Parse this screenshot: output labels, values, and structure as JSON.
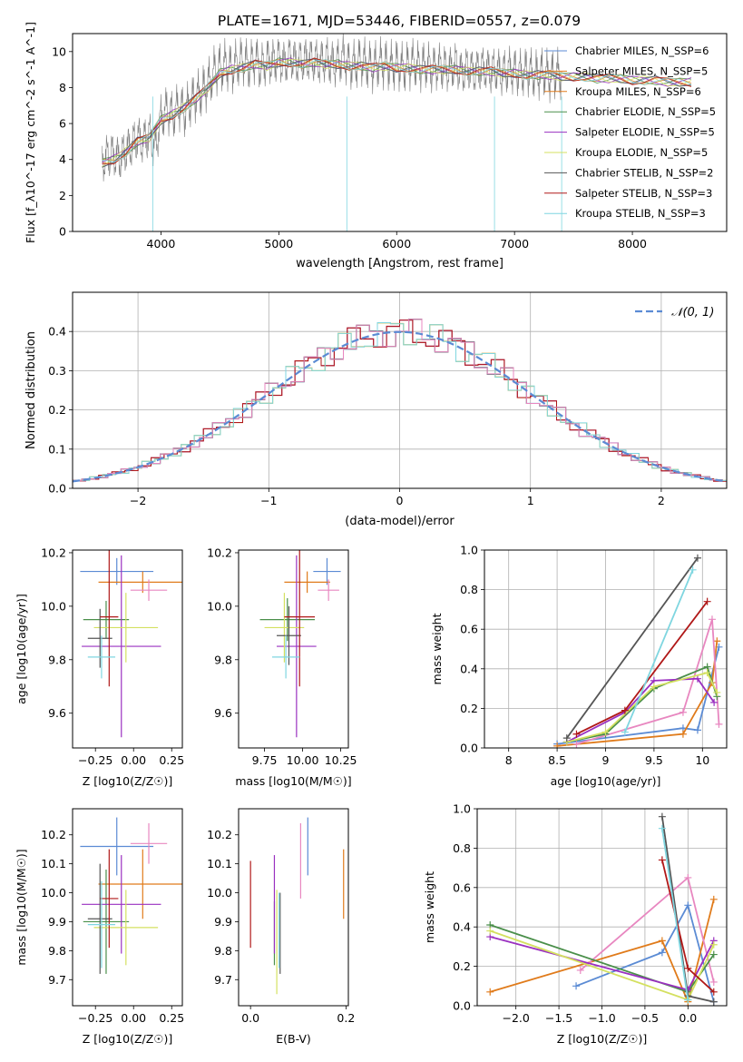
{
  "figure_title": "PLATE=1671, MJD=53446, FIBERID=0557, z=0.079",
  "colors": {
    "Chabrier MILES": "#5b8bd4",
    "Salpeter MILES": "#e07b1b",
    "Kroupa MILES": "#e07b1b",
    "Chabrier ELODIE": "#4a8f4a",
    "Salpeter ELODIE": "#9a30c0",
    "Kroupa ELODIE": "#d4e060",
    "Chabrier STELIB": "#555555",
    "Salpeter STELIB": "#b01818",
    "Kroupa STELIB": "#7fd6e0",
    "pink": "#e887c0",
    "gaussian": "#5b8bd4",
    "spectrum_grey": "#808080"
  },
  "chart_data": [
    {
      "id": "spectrum",
      "type": "line",
      "title": "PLATE=1671, MJD=53446, FIBERID=0557, z=0.079",
      "xlabel": "wavelength [Angstrom, rest frame]",
      "ylabel": "Flux [f_λ10^-17 erg cm^-2 s^-1 A^-1]",
      "xlim": [
        3250,
        8800
      ],
      "ylim": [
        0,
        11
      ],
      "xticks": [
        4000,
        5000,
        6000,
        7000,
        8000
      ],
      "yticks": [
        0,
        2,
        4,
        6,
        8,
        10
      ],
      "grid": false,
      "legend_position": "right",
      "legend": [
        {
          "name": "Chabrier MILES, N_SSP=6",
          "color": "#5b8bd4"
        },
        {
          "name": "Salpeter MILES, N_SSP=5",
          "color": "#e07b1b"
        },
        {
          "name": "Kroupa MILES, N_SSP=6",
          "color": "#e07b1b"
        },
        {
          "name": "Chabrier ELODIE, N_SSP=5",
          "color": "#4a8f4a"
        },
        {
          "name": "Salpeter ELODIE, N_SSP=5",
          "color": "#9a30c0"
        },
        {
          "name": "Kroupa ELODIE, N_SSP=5",
          "color": "#d4e060"
        },
        {
          "name": "Chabrier STELIB, N_SSP=2",
          "color": "#555555"
        },
        {
          "name": "Salpeter STELIB, N_SSP=3",
          "color": "#b01818"
        },
        {
          "name": "Kroupa STELIB, N_SSP=3",
          "color": "#7fd6e0"
        }
      ],
      "observed_x": [
        3500,
        3550,
        3600,
        3650,
        3700,
        3750,
        3800,
        3850,
        3900,
        3950,
        4000,
        4050,
        4100,
        4150,
        4200,
        4250,
        4300,
        4350,
        4400,
        4450,
        4500,
        4550,
        4600,
        4650,
        4700,
        4750,
        4800,
        4850,
        4900,
        4950,
        5000,
        5050,
        5100,
        5150,
        5200,
        5250,
        5300,
        5350,
        5400,
        5450,
        5500,
        5550,
        5600,
        5650,
        5700,
        5750,
        5800,
        5850,
        5900,
        5950,
        6000,
        6050,
        6100,
        6150,
        6200,
        6250,
        6300,
        6350,
        6400,
        6450,
        6500,
        6550,
        6600,
        6650,
        6700,
        6750,
        6800,
        6850,
        6900,
        6950,
        7000,
        7050,
        7100,
        7150,
        7200,
        7250,
        7300,
        7350,
        7400
      ],
      "observed_y": [
        3.9,
        4.2,
        4.3,
        4.0,
        4.5,
        4.8,
        5.2,
        5.0,
        5.4,
        4.6,
        6.3,
        6.8,
        6.4,
        7.0,
        6.6,
        7.2,
        7.5,
        7.8,
        8.2,
        8.9,
        9.1,
        9.3,
        9.0,
        9.4,
        9.5,
        9.2,
        9.6,
        9.1,
        9.5,
        9.4,
        9.6,
        9.3,
        9.7,
        9.4,
        9.5,
        9.6,
        9.5,
        9.4,
        9.6,
        9.3,
        9.4,
        9.7,
        9.2,
        9.3,
        9.5,
        9.3,
        9.1,
        9.4,
        9.3,
        9.2,
        9.3,
        9.1,
        9.2,
        9.4,
        9.1,
        9.3,
        9.0,
        9.2,
        9.1,
        9.0,
        9.3,
        8.8,
        9.1,
        8.9,
        9.0,
        9.1,
        8.9,
        9.0,
        8.8,
        9.0,
        8.9,
        8.8,
        8.9,
        8.8,
        8.7,
        8.9,
        8.6,
        8.8,
        8.7
      ],
      "model_x": [
        3500,
        3600,
        3700,
        3800,
        3900,
        4000,
        4100,
        4200,
        4300,
        4400,
        4500,
        4600,
        4700,
        4800,
        4900,
        5000,
        5100,
        5200,
        5300,
        5400,
        5500,
        5600,
        5700,
        5800,
        5900,
        6000,
        6100,
        6200,
        6300,
        6400,
        6500,
        6600,
        6700,
        6800,
        6900,
        7000,
        7100,
        7200,
        7300,
        7400,
        7500,
        7600,
        7700,
        7800,
        7900,
        8000,
        8100,
        8200,
        8300,
        8400,
        8500
      ],
      "model_y": [
        3.8,
        4.0,
        4.4,
        5.0,
        5.2,
        6.2,
        6.5,
        6.9,
        7.4,
        8.0,
        8.8,
        9.0,
        9.1,
        9.3,
        9.2,
        9.4,
        9.4,
        9.3,
        9.4,
        9.3,
        9.3,
        9.2,
        9.2,
        9.1,
        9.2,
        9.1,
        9.1,
        9.0,
        9.0,
        9.0,
        9.0,
        8.9,
        8.9,
        8.9,
        8.8,
        8.8,
        8.7,
        8.7,
        8.7,
        8.6,
        8.6,
        8.6,
        8.5,
        8.5,
        8.5,
        8.4,
        8.4,
        8.4,
        8.3,
        8.3,
        8.3
      ]
    },
    {
      "id": "residuals",
      "type": "histogram",
      "xlabel": "(data-model)/error",
      "ylabel": "Normed distribution",
      "xlim": [
        -2.5,
        2.5
      ],
      "ylim": [
        0,
        0.5
      ],
      "xticks": [
        -2,
        -1,
        0,
        1,
        2
      ],
      "yticks": [
        0.0,
        0.1,
        0.2,
        0.3,
        0.4
      ],
      "grid": true,
      "legend_position": "top-right",
      "legend": [
        {
          "name": "N(0,1)",
          "color": "#5b8bd4",
          "style": "dashed"
        }
      ]
    },
    {
      "id": "age_vs_Z",
      "type": "scatter",
      "xlabel": "Z [log10(Z/Z☉)]",
      "ylabel": "age  [log10(age/yr)]",
      "xlim": [
        -0.4,
        0.32
      ],
      "ylim": [
        9.47,
        10.21
      ],
      "xticks": [
        -0.25,
        0.0,
        0.25
      ],
      "yticks": [
        9.6,
        9.8,
        10.0,
        10.2
      ],
      "xtick_labels": [
        "−0.25",
        "0.00",
        "0.25"
      ],
      "points": [
        {
          "x": -0.11,
          "y": 10.13,
          "xerr": 0.24,
          "yerr": 0.05,
          "color": "#5b8bd4"
        },
        {
          "x": 0.06,
          "y": 10.09,
          "xerr": 0.29,
          "yerr": 0.04,
          "color": "#e07b1b"
        },
        {
          "x": 0.1,
          "y": 10.06,
          "xerr": 0.12,
          "yerr": 0.04,
          "color": "#e887c0"
        },
        {
          "x": -0.18,
          "y": 9.95,
          "xerr": 0.15,
          "yerr": 0.07,
          "color": "#4a8f4a"
        },
        {
          "x": -0.08,
          "y": 9.85,
          "xerr": 0.26,
          "yerr": 0.34,
          "color": "#9a30c0"
        },
        {
          "x": -0.05,
          "y": 9.92,
          "xerr": 0.21,
          "yerr": 0.13,
          "color": "#d4e060"
        },
        {
          "x": -0.22,
          "y": 9.88,
          "xerr": 0.08,
          "yerr": 0.11,
          "color": "#555555"
        },
        {
          "x": -0.16,
          "y": 9.96,
          "xerr": 0.06,
          "yerr": 0.26,
          "color": "#b01818"
        },
        {
          "x": -0.21,
          "y": 9.81,
          "xerr": 0.09,
          "yerr": 0.08,
          "color": "#7fd6e0"
        }
      ]
    },
    {
      "id": "age_vs_mass",
      "type": "scatter",
      "xlabel": "mass [log10(M/M☉)]",
      "xlim": [
        9.58,
        10.3
      ],
      "ylim": [
        9.47,
        10.21
      ],
      "xticks": [
        9.75,
        10.0,
        10.25
      ],
      "yticks": [
        9.6,
        9.8,
        10.0,
        10.2
      ],
      "xtick_labels": [
        "9.75",
        "10.00",
        "10.25"
      ],
      "points": [
        {
          "x": 10.16,
          "y": 10.13,
          "xerr": 0.09,
          "yerr": 0.05,
          "color": "#5b8bd4"
        },
        {
          "x": 10.03,
          "y": 10.09,
          "xerr": 0.15,
          "yerr": 0.04,
          "color": "#e07b1b"
        },
        {
          "x": 10.17,
          "y": 10.06,
          "xerr": 0.07,
          "yerr": 0.04,
          "color": "#e887c0"
        },
        {
          "x": 9.9,
          "y": 9.95,
          "xerr": 0.18,
          "yerr": 0.08,
          "color": "#4a8f4a"
        },
        {
          "x": 9.96,
          "y": 9.85,
          "xerr": 0.13,
          "yerr": 0.34,
          "color": "#9a30c0"
        },
        {
          "x": 9.88,
          "y": 9.92,
          "xerr": 0.13,
          "yerr": 0.13,
          "color": "#d4e060"
        },
        {
          "x": 9.91,
          "y": 9.89,
          "xerr": 0.08,
          "yerr": 0.11,
          "color": "#555555"
        },
        {
          "x": 9.98,
          "y": 9.96,
          "xerr": 0.1,
          "yerr": 0.26,
          "color": "#b01818"
        },
        {
          "x": 9.89,
          "y": 9.81,
          "xerr": 0.09,
          "yerr": 0.08,
          "color": "#7fd6e0"
        }
      ]
    },
    {
      "id": "massweight_vs_age",
      "type": "line",
      "xlabel": "age  [log10(age/yr)]",
      "ylabel": "mass weight",
      "xlim": [
        7.75,
        10.25
      ],
      "ylim": [
        0,
        1.0
      ],
      "xticks": [
        8.0,
        8.5,
        9.0,
        9.5,
        10.0
      ],
      "yticks": [
        0.0,
        0.2,
        0.4,
        0.6,
        0.8,
        1.0
      ],
      "grid": true,
      "series": [
        {
          "color": "#5b8bd4",
          "x": [
            8.5,
            9.8,
            9.95,
            10.17
          ],
          "y": [
            0.02,
            0.1,
            0.09,
            0.51
          ]
        },
        {
          "color": "#e07b1b",
          "x": [
            8.5,
            9.8,
            10.1,
            10.15
          ],
          "y": [
            0.01,
            0.07,
            0.33,
            0.54
          ]
        },
        {
          "color": "#e887c0",
          "x": [
            8.7,
            9.8,
            10.1,
            10.17
          ],
          "y": [
            0.02,
            0.18,
            0.65,
            0.12
          ]
        },
        {
          "color": "#4a8f4a",
          "x": [
            8.6,
            9.0,
            9.5,
            10.05,
            10.15
          ],
          "y": [
            0.03,
            0.07,
            0.3,
            0.41,
            0.26
          ]
        },
        {
          "color": "#9a30c0",
          "x": [
            8.6,
            9.2,
            9.5,
            9.95,
            10.12
          ],
          "y": [
            0.03,
            0.18,
            0.34,
            0.35,
            0.23
          ]
        },
        {
          "color": "#d4e060",
          "x": [
            8.6,
            9.0,
            9.5,
            10.05,
            10.15
          ],
          "y": [
            0.03,
            0.08,
            0.31,
            0.38,
            0.28
          ]
        },
        {
          "color": "#555555",
          "x": [
            8.6,
            9.95
          ],
          "y": [
            0.05,
            0.96
          ]
        },
        {
          "color": "#b01818",
          "x": [
            8.7,
            9.2,
            10.05
          ],
          "y": [
            0.07,
            0.19,
            0.74
          ]
        },
        {
          "color": "#7fd6e0",
          "x": [
            9.2,
            9.9
          ],
          "y": [
            0.08,
            0.9
          ]
        }
      ]
    },
    {
      "id": "mass_vs_Z",
      "type": "scatter",
      "xlabel": "Z [log10(Z/Z☉)]",
      "ylabel": "mass [log10(M/M☉)]",
      "xlim": [
        -0.4,
        0.32
      ],
      "ylim": [
        9.61,
        10.29
      ],
      "xticks": [
        -0.25,
        0.0,
        0.25
      ],
      "yticks": [
        9.7,
        9.8,
        9.9,
        10.0,
        10.1,
        10.2
      ],
      "xtick_labels": [
        "−0.25",
        "0.00",
        "0.25"
      ],
      "points": [
        {
          "x": -0.11,
          "y": 10.16,
          "xerr": 0.24,
          "yerr": 0.1,
          "color": "#5b8bd4"
        },
        {
          "x": 0.06,
          "y": 10.03,
          "xerr": 0.29,
          "yerr": 0.12,
          "color": "#e07b1b"
        },
        {
          "x": 0.1,
          "y": 10.17,
          "xerr": 0.12,
          "yerr": 0.07,
          "color": "#e887c0"
        },
        {
          "x": -0.18,
          "y": 9.9,
          "xerr": 0.15,
          "yerr": 0.18,
          "color": "#4a8f4a"
        },
        {
          "x": -0.08,
          "y": 9.96,
          "xerr": 0.26,
          "yerr": 0.17,
          "color": "#9a30c0"
        },
        {
          "x": -0.05,
          "y": 9.88,
          "xerr": 0.21,
          "yerr": 0.13,
          "color": "#d4e060"
        },
        {
          "x": -0.22,
          "y": 9.91,
          "xerr": 0.08,
          "yerr": 0.19,
          "color": "#555555"
        },
        {
          "x": -0.16,
          "y": 9.98,
          "xerr": 0.06,
          "yerr": 0.17,
          "color": "#b01818"
        },
        {
          "x": -0.21,
          "y": 9.89,
          "xerr": 0.09,
          "yerr": 0.15,
          "color": "#7fd6e0"
        }
      ]
    },
    {
      "id": "mass_vs_ebv",
      "type": "scatter",
      "xlabel": "E(B-V)",
      "xlim": [
        -0.025,
        0.205
      ],
      "ylim": [
        9.61,
        10.29
      ],
      "xticks": [
        0.0,
        0.2
      ],
      "yticks": [
        9.7,
        9.8,
        9.9,
        10.0,
        10.1,
        10.2
      ],
      "xtick_labels": [
        "0.0",
        "0.2"
      ],
      "points": [
        {
          "x": 0.12,
          "y": 10.16,
          "yerr": 0.1,
          "color": "#5b8bd4"
        },
        {
          "x": 0.195,
          "y": 10.03,
          "yerr": 0.12,
          "color": "#e07b1b"
        },
        {
          "x": 0.105,
          "y": 10.11,
          "yerr": 0.13,
          "color": "#e887c0"
        },
        {
          "x": 0.05,
          "y": 9.86,
          "yerr": 0.11,
          "color": "#4a8f4a"
        },
        {
          "x": 0.05,
          "y": 9.96,
          "yerr": 0.17,
          "color": "#9a30c0"
        },
        {
          "x": 0.055,
          "y": 9.83,
          "yerr": 0.18,
          "color": "#d4e060"
        },
        {
          "x": 0.062,
          "y": 9.86,
          "yerr": 0.14,
          "color": "#555555"
        },
        {
          "x": 0.0,
          "y": 9.96,
          "yerr": 0.15,
          "color": "#b01818"
        },
        {
          "x": 0.06,
          "y": 9.87,
          "yerr": 0.13,
          "color": "#7fd6e0"
        }
      ]
    },
    {
      "id": "massweight_vs_Z",
      "type": "line",
      "xlabel": "Z [log10(Z/Z☉)]",
      "ylabel": "mass weight",
      "xlim": [
        -2.45,
        0.45
      ],
      "ylim": [
        0,
        1.0
      ],
      "xticks": [
        -2.0,
        -1.5,
        -1.0,
        -0.5,
        0.0
      ],
      "yticks": [
        0.0,
        0.2,
        0.4,
        0.6,
        0.8,
        1.0
      ],
      "grid": true,
      "xtick_labels": [
        "−2.0",
        "−1.5",
        "−1.0",
        "−0.5",
        "0.0"
      ],
      "series": [
        {
          "color": "#5b8bd4",
          "x": [
            -1.3,
            -0.3,
            0.0,
            0.3
          ],
          "y": [
            0.1,
            0.27,
            0.51,
            0.02
          ]
        },
        {
          "color": "#e07b1b",
          "x": [
            -2.3,
            -0.3,
            0.0,
            0.3
          ],
          "y": [
            0.07,
            0.33,
            0.02,
            0.54
          ]
        },
        {
          "color": "#e887c0",
          "x": [
            -1.25,
            0.0,
            0.3
          ],
          "y": [
            0.18,
            0.65,
            0.12
          ]
        },
        {
          "color": "#4a8f4a",
          "x": [
            -2.3,
            0.0,
            0.3
          ],
          "y": [
            0.41,
            0.07,
            0.26
          ]
        },
        {
          "color": "#9a30c0",
          "x": [
            -2.3,
            0.0,
            0.3
          ],
          "y": [
            0.35,
            0.08,
            0.33
          ]
        },
        {
          "color": "#d4e060",
          "x": [
            -2.3,
            0.0,
            0.3
          ],
          "y": [
            0.38,
            0.03,
            0.31
          ]
        },
        {
          "color": "#555555",
          "x": [
            -0.3,
            0.0,
            0.3
          ],
          "y": [
            0.96,
            0.05,
            0.02
          ]
        },
        {
          "color": "#b01818",
          "x": [
            -0.3,
            0.0,
            0.3
          ],
          "y": [
            0.74,
            0.19,
            0.07
          ]
        },
        {
          "color": "#7fd6e0",
          "x": [
            -0.3,
            0.0
          ],
          "y": [
            0.9,
            0.03
          ]
        }
      ]
    }
  ]
}
